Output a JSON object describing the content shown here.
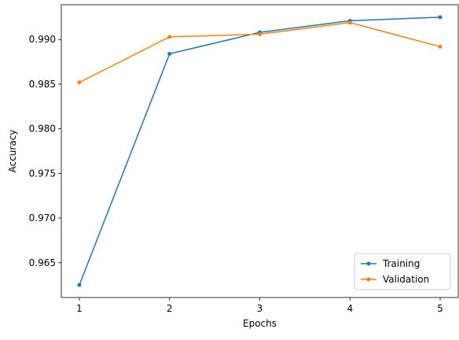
{
  "chart_data": {
    "type": "line",
    "title": "",
    "xlabel": "Epochs",
    "ylabel": "Accuracy",
    "x": [
      1,
      2,
      3,
      4,
      5
    ],
    "xticks": [
      "1",
      "2",
      "3",
      "4",
      "5"
    ],
    "yticks": [
      "0.965",
      "0.970",
      "0.975",
      "0.980",
      "0.985",
      "0.990"
    ],
    "xlim": [
      0.8,
      5.2
    ],
    "ylim": [
      0.9611,
      0.9939
    ],
    "grid": false,
    "legend_position": "lower-right",
    "series": [
      {
        "name": "Training",
        "color": "#1f77b4",
        "values": [
          0.9625,
          0.9884,
          0.9908,
          0.9921,
          0.9925
        ]
      },
      {
        "name": "Validation",
        "color": "#ff7f0e",
        "values": [
          0.9852,
          0.9903,
          0.9906,
          0.9919,
          0.9892
        ]
      }
    ]
  }
}
